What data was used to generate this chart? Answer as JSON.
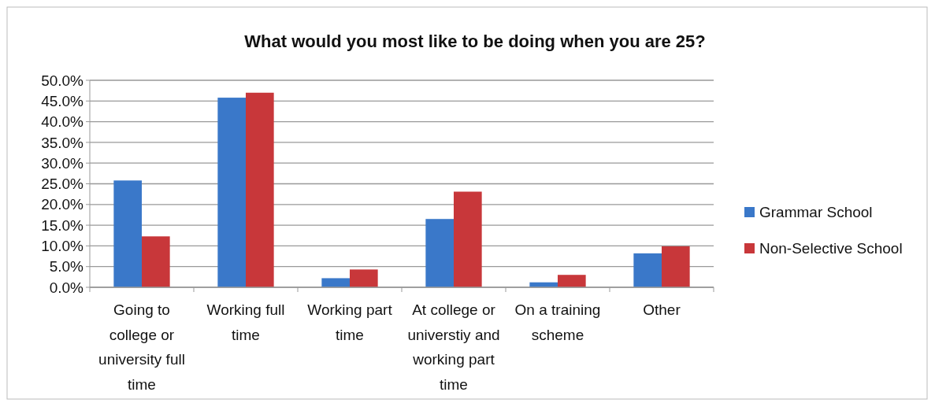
{
  "chart_data": {
    "type": "bar",
    "title": "What would you most like to be doing when you are 25?",
    "categories": [
      "Going to college or university full time",
      "Working full time",
      "Working part time",
      "At college or universtiy and working part time",
      "On a training scheme",
      "Other"
    ],
    "series": [
      {
        "name": "Grammar School",
        "color": "#3a78c9",
        "values": [
          25.8,
          45.8,
          2.2,
          16.5,
          1.2,
          8.2
        ]
      },
      {
        "name": "Non-Selective School",
        "color": "#c8373a",
        "values": [
          12.3,
          47.0,
          4.3,
          23.1,
          3.0,
          9.9
        ]
      }
    ],
    "ylim": [
      0,
      50
    ],
    "yticks": [
      {
        "value": 0,
        "label": "0.0%"
      },
      {
        "value": 5,
        "label": "5.0%"
      },
      {
        "value": 10,
        "label": "10.0%"
      },
      {
        "value": 15,
        "label": "15.0%"
      },
      {
        "value": 20,
        "label": "20.0%"
      },
      {
        "value": 25,
        "label": "25.0%"
      },
      {
        "value": 30,
        "label": "30.0%"
      },
      {
        "value": 35,
        "label": "35.0%"
      },
      {
        "value": 40,
        "label": "40.0%"
      },
      {
        "value": 45,
        "label": "45.0%"
      },
      {
        "value": 50,
        "label": "50.0%"
      }
    ],
    "grid": "y",
    "legend": "right"
  }
}
